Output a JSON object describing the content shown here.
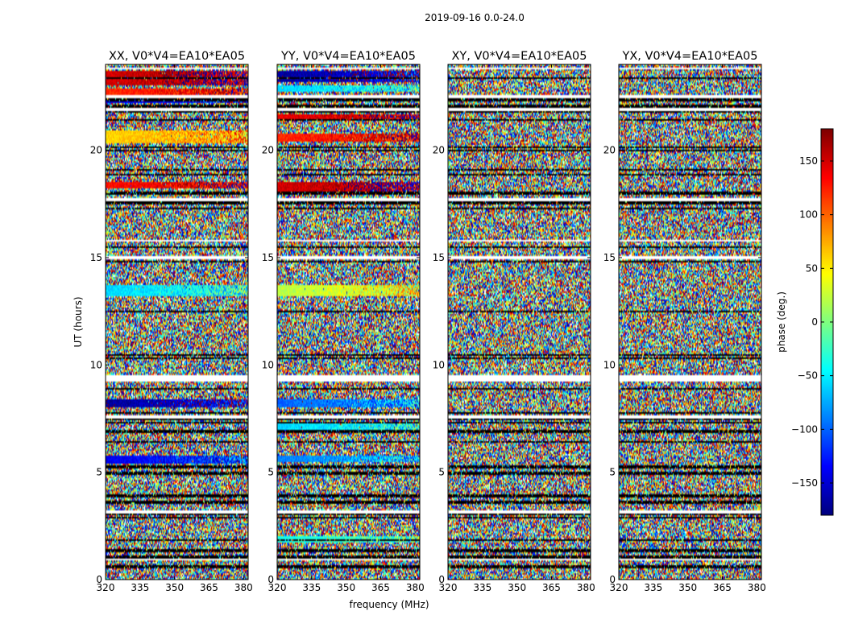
{
  "chart_data": {
    "type": "heatmap",
    "suptitle": "2019-09-16 0.0-24.0",
    "xlabel": "frequency (MHz)",
    "ylabel": "UT (hours)",
    "xlim": [
      320,
      382
    ],
    "ylim": [
      0,
      24
    ],
    "xticks": [
      320,
      335,
      350,
      365,
      380
    ],
    "yticks": [
      0,
      5,
      10,
      15,
      20
    ],
    "colorbar": {
      "label": "phase (deg.)",
      "range": [
        -180,
        180
      ],
      "ticks": [
        150,
        100,
        50,
        0,
        -50,
        -100,
        -150
      ],
      "tick_labels": [
        "150",
        "100",
        "50",
        "0",
        "−50",
        "−100",
        "−150"
      ],
      "colormap": "jet"
    },
    "panels": [
      {
        "title": "XX, V0*V4=EA10*EA05",
        "coherent_bands": [
          {
            "t0": 23.0,
            "t1": 23.7,
            "phase": 150
          },
          {
            "t0": 22.6,
            "t1": 22.9,
            "phase": 120
          },
          {
            "t0": 22.2,
            "t1": 22.4,
            "phase": -150
          },
          {
            "t0": 20.3,
            "t1": 20.9,
            "phase": 60
          },
          {
            "t0": 18.2,
            "t1": 18.5,
            "phase": 130
          },
          {
            "t0": 13.2,
            "t1": 13.7,
            "phase": -60
          },
          {
            "t0": 8.0,
            "t1": 8.4,
            "phase": -170
          },
          {
            "t0": 5.4,
            "t1": 5.8,
            "phase": -140
          }
        ]
      },
      {
        "title": "YY, V0*V4=EA10*EA05",
        "coherent_bands": [
          {
            "t0": 23.2,
            "t1": 23.7,
            "phase": -170
          },
          {
            "t0": 22.7,
            "t1": 23.0,
            "phase": -60
          },
          {
            "t0": 21.4,
            "t1": 21.7,
            "phase": 140
          },
          {
            "t0": 20.4,
            "t1": 20.8,
            "phase": 120
          },
          {
            "t0": 18.1,
            "t1": 18.5,
            "phase": 150
          },
          {
            "t0": 13.2,
            "t1": 13.7,
            "phase": 20
          },
          {
            "t0": 8.0,
            "t1": 8.4,
            "phase": -100
          },
          {
            "t0": 7.0,
            "t1": 7.3,
            "phase": -60
          },
          {
            "t0": 5.5,
            "t1": 5.8,
            "phase": -90
          },
          {
            "t0": 1.7,
            "t1": 2.0,
            "phase": -40
          }
        ]
      },
      {
        "title": "XY, V0*V4=EA10*EA05",
        "coherent_bands": []
      },
      {
        "title": "YX, V0*V4=EA10*EA05",
        "coherent_bands": []
      }
    ],
    "flagged_rows_ut": [
      0.6,
      1.05,
      1.35,
      1.85,
      2.9,
      3.05,
      3.6,
      3.9,
      4.95,
      5.25,
      6.4,
      6.9,
      7.3,
      7.45,
      7.75,
      8.9,
      9.25,
      9.45,
      10.3,
      10.45,
      12.5,
      14.8,
      14.95,
      15.5,
      15.8,
      17.3,
      17.55,
      18.0,
      18.85,
      19.1,
      20.0,
      20.15,
      21.4,
      21.8,
      22.05,
      22.35,
      23.35
    ],
    "white_gaps_ut": [
      [
        0.9,
        1.0
      ],
      [
        3.1,
        3.25
      ],
      [
        7.5,
        7.65
      ],
      [
        9.25,
        9.5
      ],
      [
        14.95,
        15.1
      ],
      [
        15.75,
        15.85
      ],
      [
        17.6,
        17.75
      ],
      [
        21.8,
        22.0
      ],
      [
        22.45,
        22.6
      ],
      [
        23.75,
        23.85
      ]
    ]
  }
}
